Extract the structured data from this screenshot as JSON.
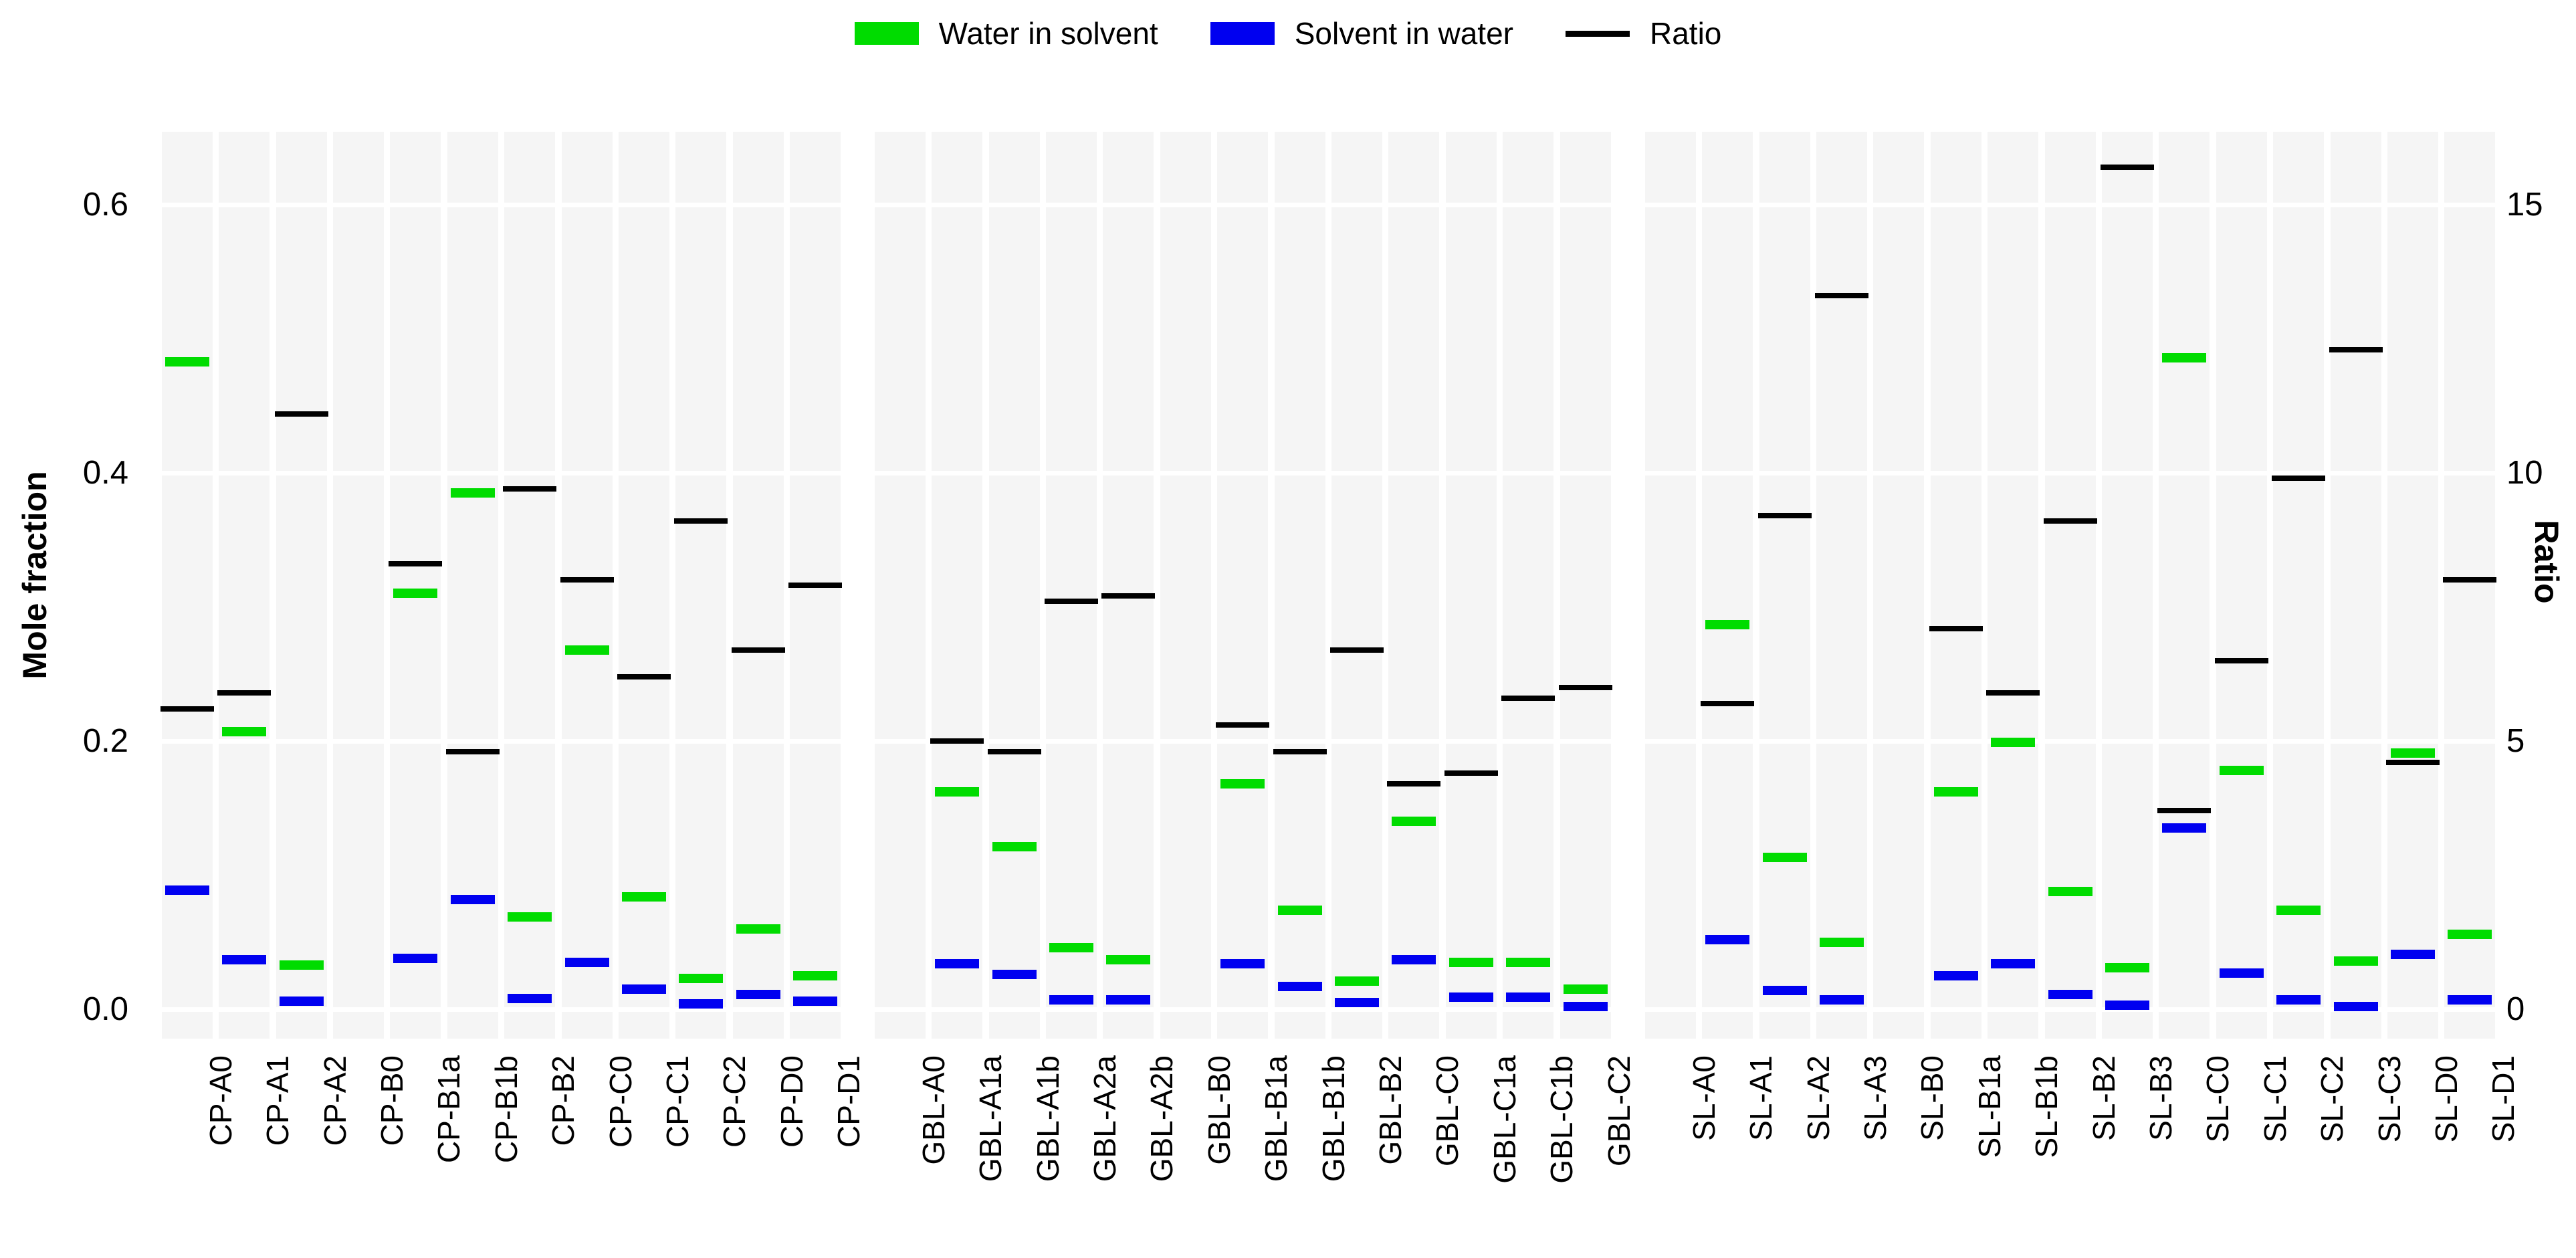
{
  "legend": {
    "items": [
      {
        "label": "Water in solvent",
        "color": "#00DC00",
        "swatch": "bar"
      },
      {
        "label": "Solvent in water",
        "color": "#0000F0",
        "swatch": "bar"
      },
      {
        "label": "Ratio",
        "color": "#000000",
        "swatch": "line"
      }
    ]
  },
  "axes": {
    "left": {
      "title": "Mole fraction",
      "tick_labels": [
        "0.0",
        "0.2",
        "0.4",
        "0.6"
      ],
      "tick_values": [
        0.0,
        0.2,
        0.4,
        0.6
      ]
    },
    "right": {
      "title": "Ratio",
      "tick_labels": [
        "0",
        "5",
        "10",
        "15"
      ],
      "tick_values": [
        0,
        5,
        10,
        15
      ],
      "mole_fraction_per_ratio_unit": 0.04
    }
  },
  "chart_data": {
    "type": "scatter",
    "marker_style": "horizontal-dash",
    "title": "",
    "ylabel_left": "Mole fraction",
    "ylabel_right": "Ratio",
    "ylim_left": [
      -0.022,
      0.654
    ],
    "right_axis_scale_factor": 25,
    "left_ticks": [
      0.0,
      0.2,
      0.4,
      0.6
    ],
    "right_ticks": [
      0,
      5,
      10,
      15
    ],
    "grid": "white major gridlines and category separators on light gray panels",
    "legend_position": "top center",
    "series_names": [
      "Water in solvent",
      "Solvent in water",
      "Ratio"
    ],
    "series_colors": {
      "water_in_solvent": "#00DC00",
      "solvent_in_water": "#0000F0",
      "ratio": "#000000"
    },
    "panels": [
      {
        "name": "CP",
        "categories": [
          "CP-A0",
          "CP-A1",
          "CP-A2",
          "CP-B0",
          "CP-B1a",
          "CP-B1b",
          "CP-B2",
          "CP-C0",
          "CP-C1",
          "CP-C2",
          "CP-D0",
          "CP-D1"
        ],
        "water_in_solvent": [
          0.483,
          0.207,
          0.033,
          null,
          0.31,
          0.385,
          0.069,
          0.268,
          0.084,
          0.023,
          0.06,
          0.025
        ],
        "solvent_in_water": [
          0.089,
          0.037,
          0.006,
          null,
          0.038,
          0.082,
          0.008,
          0.035,
          0.015,
          0.004,
          0.011,
          0.006
        ],
        "ratio": [
          5.6,
          5.9,
          11.1,
          null,
          8.3,
          4.8,
          9.7,
          8.0,
          6.2,
          9.1,
          6.7,
          7.9
        ]
      },
      {
        "name": "GBL",
        "categories": [
          "GBL-A0",
          "GBL-A1a",
          "GBL-A1b",
          "GBL-A2a",
          "GBL-A2b",
          "GBL-B0",
          "GBL-B1a",
          "GBL-B1b",
          "GBL-B2",
          "GBL-C0",
          "GBL-C1a",
          "GBL-C1b",
          "GBL-C2"
        ],
        "water_in_solvent": [
          null,
          0.162,
          0.121,
          0.046,
          0.037,
          null,
          0.168,
          0.074,
          0.021,
          0.14,
          0.035,
          0.035,
          0.015
        ],
        "solvent_in_water": [
          null,
          0.034,
          0.026,
          0.007,
          0.007,
          null,
          0.034,
          0.017,
          0.005,
          0.037,
          0.009,
          0.009,
          0.002
        ],
        "ratio": [
          null,
          5.0,
          4.8,
          7.6,
          7.7,
          null,
          5.3,
          4.8,
          6.7,
          4.2,
          4.4,
          5.8,
          6.0
        ]
      },
      {
        "name": "SL",
        "categories": [
          "SL-A0",
          "SL-A1",
          "SL-A2",
          "SL-A3",
          "SL-B0",
          "SL-B1a",
          "SL-B1b",
          "SL-B2",
          "SL-B3",
          "SL-C0",
          "SL-C1",
          "SL-C2",
          "SL-C3",
          "SL-D0",
          "SL-D1"
        ],
        "water_in_solvent": [
          null,
          0.287,
          0.113,
          0.05,
          null,
          0.162,
          0.199,
          0.088,
          0.031,
          0.486,
          0.178,
          0.074,
          0.036,
          0.191,
          0.056
        ],
        "solvent_in_water": [
          null,
          0.052,
          0.014,
          0.007,
          null,
          0.025,
          0.034,
          0.011,
          0.003,
          0.135,
          0.027,
          0.007,
          0.002,
          0.041,
          0.007
        ],
        "ratio": [
          null,
          5.7,
          9.2,
          13.3,
          null,
          7.1,
          5.9,
          9.1,
          15.7,
          3.7,
          6.5,
          9.9,
          12.3,
          4.6,
          8.0
        ]
      }
    ]
  }
}
